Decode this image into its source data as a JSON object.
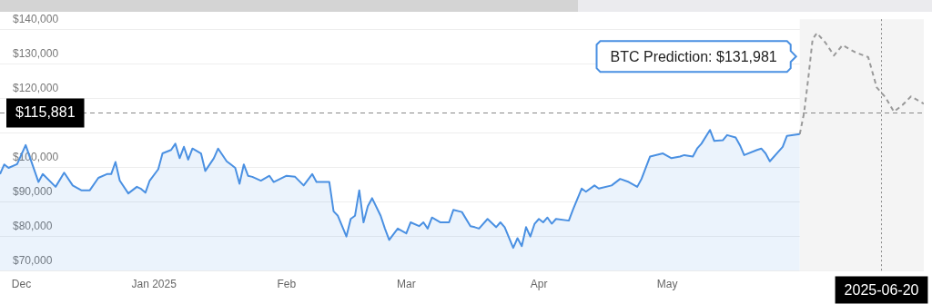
{
  "chart_data": {
    "type": "area",
    "ylim": [
      70000,
      143000
    ],
    "yticks": [
      {
        "value": 70000,
        "label": "$70,000"
      },
      {
        "value": 80000,
        "label": "$80,000"
      },
      {
        "value": 90000,
        "label": "$90,000"
      },
      {
        "value": 100000,
        "label": "$100,000"
      },
      {
        "value": 110000,
        "label": null
      },
      {
        "value": 120000,
        "label": "$120,000"
      },
      {
        "value": 130000,
        "label": "$130,000"
      },
      {
        "value": 140000,
        "label": "$140,000"
      }
    ],
    "xlim": [
      "2024-11-26",
      "2025-06-30"
    ],
    "xticks": [
      {
        "value": "2024-12-01",
        "label": "Dec"
      },
      {
        "value": "2025-01-01",
        "label": "Jan 2025"
      },
      {
        "value": "2025-02-01",
        "label": "Feb"
      },
      {
        "value": "2025-03-01",
        "label": "Mar"
      },
      {
        "value": "2025-04-01",
        "label": "Apr"
      },
      {
        "value": "2025-05-01",
        "label": "May"
      }
    ],
    "grid": "y",
    "legend": false,
    "marker": "none",
    "series": [
      {
        "type": "area",
        "color": "#4a90e2",
        "x": [
          "2024-11-26",
          "2024-11-27",
          "2024-11-28",
          "2024-11-30",
          "2024-12-02",
          "2024-12-05",
          "2024-12-06",
          "2024-12-09",
          "2024-12-11",
          "2024-12-13",
          "2024-12-15",
          "2024-12-17",
          "2024-12-19",
          "2024-12-21",
          "2024-12-22",
          "2024-12-23",
          "2024-12-24",
          "2024-12-26",
          "2024-12-28",
          "2024-12-29",
          "2024-12-30",
          "2024-12-31",
          "2025-01-02",
          "2025-01-03",
          "2025-01-05",
          "2025-01-06",
          "2025-01-07",
          "2025-01-08",
          "2025-01-09",
          "2025-01-10",
          "2025-01-12",
          "2025-01-13",
          "2025-01-15",
          "2025-01-16",
          "2025-01-18",
          "2025-01-20",
          "2025-01-21",
          "2025-01-22",
          "2025-01-23",
          "2025-01-24",
          "2025-01-26",
          "2025-01-28",
          "2025-01-29",
          "2025-02-01",
          "2025-02-03",
          "2025-02-05",
          "2025-02-07",
          "2025-02-08",
          "2025-02-11",
          "2025-02-12",
          "2025-02-13",
          "2025-02-15",
          "2025-02-16",
          "2025-02-17",
          "2025-02-18",
          "2025-02-19",
          "2025-02-20",
          "2025-02-21",
          "2025-02-23",
          "2025-02-24",
          "2025-02-25",
          "2025-02-27",
          "2025-03-01",
          "2025-03-02",
          "2025-03-04",
          "2025-03-05",
          "2025-03-06",
          "2025-03-07",
          "2025-03-09",
          "2025-03-11",
          "2025-03-12",
          "2025-03-14",
          "2025-03-16",
          "2025-03-17",
          "2025-03-18",
          "2025-03-20",
          "2025-03-22",
          "2025-03-23",
          "2025-03-24",
          "2025-03-26",
          "2025-03-27",
          "2025-03-28",
          "2025-03-29",
          "2025-03-30",
          "2025-03-31",
          "2025-04-01",
          "2025-04-02",
          "2025-04-03",
          "2025-04-04",
          "2025-04-05",
          "2025-04-08",
          "2025-04-09",
          "2025-04-11",
          "2025-04-12",
          "2025-04-14",
          "2025-04-15",
          "2025-04-18",
          "2025-04-20",
          "2025-04-22",
          "2025-04-24",
          "2025-04-25",
          "2025-04-27",
          "2025-04-30",
          "2025-05-02",
          "2025-05-04",
          "2025-05-05",
          "2025-05-07",
          "2025-05-08",
          "2025-05-09",
          "2025-05-11",
          "2025-05-12",
          "2025-05-14",
          "2025-05-15",
          "2025-05-17",
          "2025-05-18",
          "2025-05-19",
          "2025-05-22",
          "2025-05-23",
          "2025-05-24",
          "2025-05-25",
          "2025-05-27",
          "2025-05-28",
          "2025-05-29",
          "2025-06-01"
        ],
        "values": [
          98100,
          100900,
          99900,
          101000,
          106500,
          95800,
          98100,
          94400,
          98500,
          94800,
          93400,
          93400,
          97000,
          98100,
          98100,
          101600,
          96200,
          92500,
          94400,
          93800,
          92700,
          96200,
          99500,
          104100,
          105100,
          106900,
          102700,
          106000,
          102300,
          105500,
          104100,
          99000,
          102700,
          105500,
          101800,
          99900,
          95300,
          100900,
          97600,
          97300,
          96200,
          97600,
          95800,
          97600,
          97300,
          94800,
          98100,
          95800,
          95800,
          87300,
          86000,
          80000,
          85100,
          86000,
          93400,
          84100,
          88800,
          91100,
          86000,
          82300,
          79000,
          82300,
          80900,
          84100,
          83000,
          84100,
          82300,
          85500,
          84100,
          84100,
          87700,
          87100,
          83000,
          82700,
          82300,
          85100,
          82700,
          84100,
          82700,
          76700,
          79500,
          77200,
          82700,
          80000,
          83700,
          85100,
          84100,
          85500,
          83700,
          85100,
          84600,
          87900,
          93900,
          93000,
          94800,
          93900,
          94800,
          96700,
          95800,
          94400,
          96700,
          103200,
          104100,
          102700,
          103200,
          103600,
          103200,
          105500,
          106900,
          110900,
          107700,
          107900,
          109400,
          108700,
          106500,
          103600,
          105100,
          105500,
          104100,
          101800,
          104600,
          106000,
          109200,
          109700
        ]
      },
      {
        "type": "line",
        "color": "#999999",
        "line_style": "dashed",
        "x": [
          "2025-06-01",
          "2025-06-02",
          "2025-06-03",
          "2025-06-04",
          "2025-06-05",
          "2025-06-07",
          "2025-06-09",
          "2025-06-11",
          "2025-06-14",
          "2025-06-17",
          "2025-06-19",
          "2025-06-21",
          "2025-06-23",
          "2025-06-25",
          "2025-06-27",
          "2025-06-30"
        ],
        "values": [
          109700,
          115800,
          126000,
          137200,
          139000,
          136200,
          132500,
          135500,
          133400,
          132000,
          123200,
          120400,
          116200,
          118100,
          120600,
          118500
        ]
      }
    ],
    "bands": [
      {
        "axis": "x",
        "from": "2025-06-01",
        "to": "2025-06-30",
        "color": "#f4f4f4"
      }
    ],
    "ref_lines": [
      {
        "axis": "y",
        "value": 115881,
        "label": "$115,881",
        "line_style": "dashed"
      },
      {
        "axis": "x",
        "value": "2025-06-20",
        "label": "2025-06-20",
        "line_style": "dotted"
      }
    ],
    "annotations": [
      "BTC Prediction: $131,981"
    ]
  }
}
